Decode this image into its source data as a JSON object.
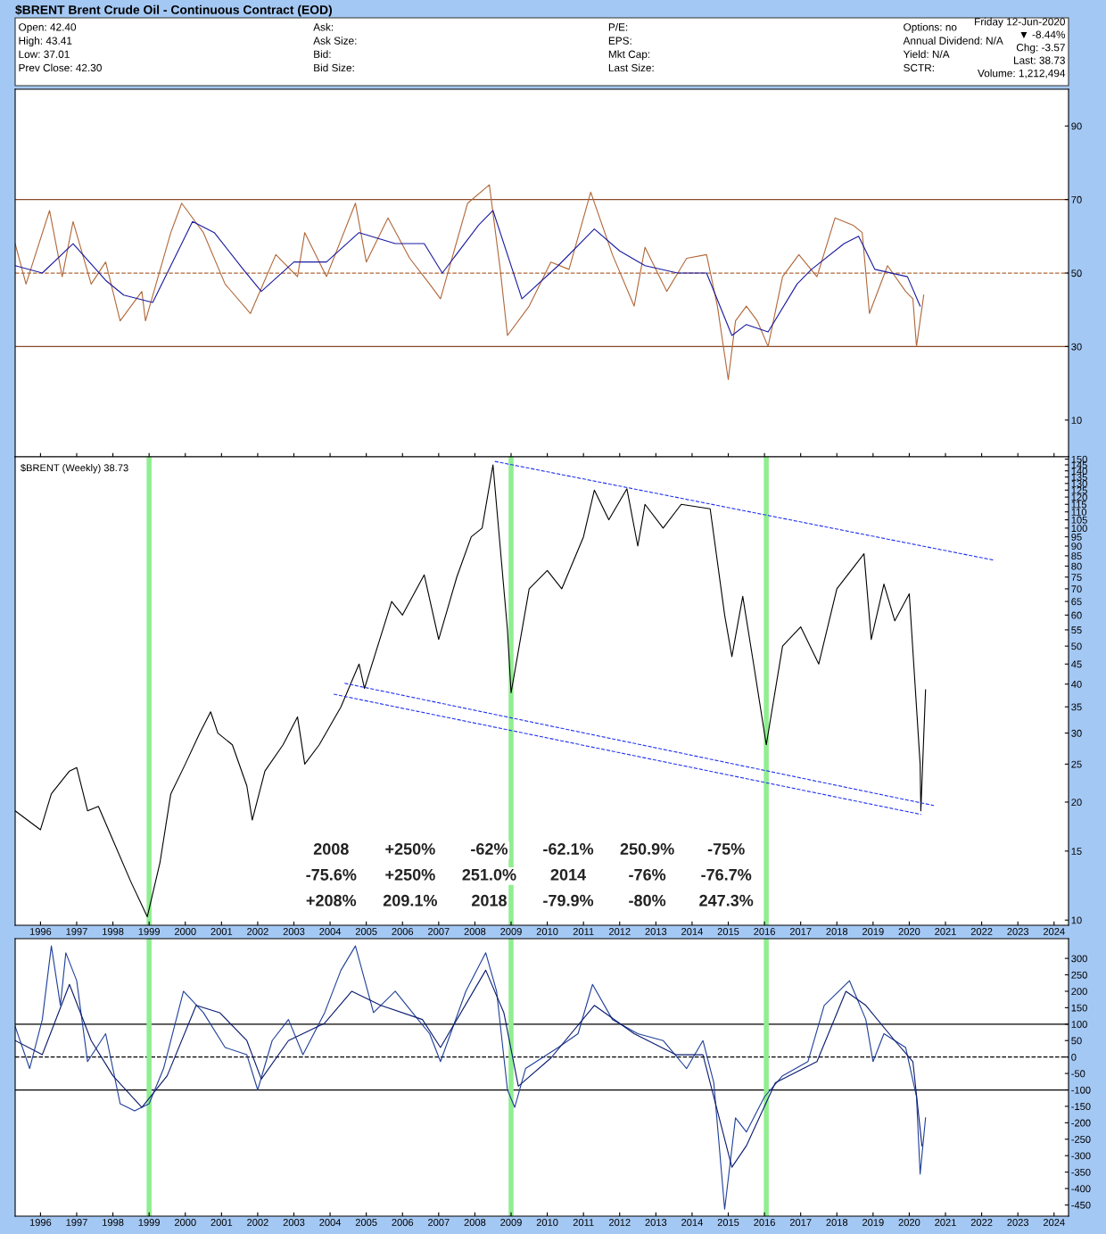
{
  "chart_data": [
    {
      "type": "line",
      "title": "$BRENT Brent Crude Oil - Continuous Contract (EOD)",
      "annotations": [
        "Open: 42.40",
        "High: 43.41",
        "Low: 37.01",
        "Prev Close: 42.30",
        "Ask:",
        "Ask Size:",
        "Bid:",
        "Bid Size:",
        "P/E:",
        "EPS:",
        "Mkt Cap:",
        "Last Size:",
        "Options: no",
        "Annual Dividend: N/A",
        "Yield: N/A",
        "SCTR:",
        "Friday 12-Jun-2020",
        "▼ -8.44%",
        "Chg: -3.57",
        "Last: 38.73",
        "Volume: 1,212,494"
      ],
      "series": [
        {
          "color": "#b0683a",
          "x": [
            1995.3,
            1995.6,
            1996.25,
            1996.6,
            1996.9,
            1997.4,
            1997.8,
            1998.2,
            1998.8,
            1998.9,
            1999.6,
            1999.9,
            2000.5,
            2001.1,
            2001.8,
            2002.5,
            2003.1,
            2003.3,
            2003.9,
            2004.7,
            2005.0,
            2005.6,
            2006.2,
            2006.75,
            2007.05,
            2007.8,
            2008.4,
            2008.7,
            2008.9,
            2009.5,
            2010.1,
            2010.6,
            2011.2,
            2011.8,
            2012.4,
            2012.7,
            2013.3,
            2013.85,
            2014.4,
            2014.7,
            2015.0,
            2015.2,
            2015.5,
            2015.8,
            2016.1,
            2016.5,
            2016.95,
            2017.45,
            2017.95,
            2018.45,
            2018.7,
            2018.9,
            2019.4,
            2019.9,
            2020.1,
            2020.2,
            2020.4
          ],
          "values": [
            58,
            47,
            67,
            49,
            64,
            47,
            53,
            37,
            45,
            37,
            61,
            69,
            61,
            47,
            39,
            55,
            49,
            61,
            49,
            69,
            53,
            65,
            54,
            47,
            43,
            69,
            74,
            51,
            33,
            41,
            53,
            51,
            72,
            55,
            41,
            57,
            45,
            54,
            55,
            41,
            21,
            37,
            41,
            37,
            30,
            49,
            55,
            49,
            65,
            63,
            61,
            39,
            52,
            45,
            43,
            30,
            44
          ]
        },
        {
          "color": "#1a1aa0",
          "x": [
            1995.3,
            1996.05,
            1996.9,
            1997.8,
            1998.3,
            1999.1,
            2000.2,
            2000.8,
            2001.6,
            2002.1,
            2003.0,
            2003.9,
            2004.8,
            2005.8,
            2006.6,
            2007.1,
            2008.1,
            2008.5,
            2009.3,
            2010.3,
            2011.3,
            2012.0,
            2012.7,
            2013.6,
            2014.4,
            2015.1,
            2015.5,
            2016.1,
            2016.9,
            2017.3,
            2018.2,
            2018.6,
            2019.05,
            2019.95,
            2020.3
          ],
          "values": [
            52,
            50,
            58,
            48,
            44,
            42,
            64,
            61,
            51,
            45,
            53,
            53,
            61,
            58,
            58,
            50,
            63,
            67,
            43,
            52,
            62,
            56,
            52,
            50,
            50,
            33,
            36,
            34,
            47,
            51,
            58,
            60,
            51,
            49,
            41
          ]
        }
      ],
      "xlim": [
        1995.3,
        2024.4
      ],
      "xticks": [
        1996,
        1997,
        1998,
        1999,
        2000,
        2001,
        2002,
        2003,
        2004,
        2005,
        2006,
        2007,
        2008,
        2009,
        2010,
        2011,
        2012,
        2013,
        2014,
        2015,
        2016,
        2017,
        2018,
        2019,
        2020,
        2021,
        2022,
        2023,
        2024
      ],
      "ylim": [
        0,
        100
      ],
      "yticks": [
        10,
        30,
        50,
        70,
        90
      ],
      "tick_labels": "y",
      "line_style": "solid",
      "ref_lines": [
        {
          "axis": "y",
          "value": 70,
          "color": "#8b4a2b",
          "line_style": "solid"
        },
        {
          "axis": "y",
          "value": 30,
          "color": "#8b4a2b",
          "line_style": "solid"
        },
        {
          "axis": "y",
          "value": 50,
          "color": "#b0683a",
          "line_style": "dashed"
        }
      ]
    },
    {
      "type": "line",
      "log": true,
      "annotations": [
        "$BRENT (Weekly) 38.73",
        "2008",
        "+250%",
        "-62%",
        "-62.1%",
        "250.9%",
        "-75%",
        "-75.6%",
        "+250%",
        "251.0%",
        "2014",
        "-76%",
        "-76.7%",
        "+208%",
        "209.1%",
        "2018",
        "-79.9%",
        "-80%",
        "247.3%"
      ],
      "series": [
        {
          "color": "#000000",
          "x": [
            1995.3,
            1996.0,
            1996.3,
            1996.8,
            1997.0,
            1997.3,
            1997.6,
            1998.0,
            1998.5,
            1998.95,
            1999.3,
            1999.6,
            2000.0,
            2000.4,
            2000.7,
            2000.9,
            2001.3,
            2001.7,
            2001.85,
            2002.2,
            2002.7,
            2003.1,
            2003.3,
            2003.7,
            2004.3,
            2004.8,
            2004.95,
            2005.7,
            2006.0,
            2006.6,
            2007.0,
            2007.5,
            2007.9,
            2008.2,
            2008.5,
            2008.9,
            2009.0,
            2009.5,
            2010.0,
            2010.4,
            2011.0,
            2011.3,
            2011.7,
            2012.2,
            2012.5,
            2012.7,
            2013.2,
            2013.7,
            2014.5,
            2014.9,
            2015.1,
            2015.4,
            2015.7,
            2016.05,
            2016.5,
            2017.0,
            2017.5,
            2018.0,
            2018.75,
            2018.95,
            2019.3,
            2019.6,
            2020.0,
            2020.3,
            2020.32,
            2020.45
          ],
          "values": [
            19,
            17,
            21,
            24,
            24.5,
            19,
            19.5,
            16,
            12.5,
            10.2,
            14,
            21,
            25,
            30,
            34,
            30,
            28,
            22,
            18,
            24,
            28,
            33,
            25,
            28,
            35,
            45,
            39,
            65,
            60,
            76,
            52,
            75,
            95,
            100,
            145,
            55,
            38,
            70,
            78,
            70,
            95,
            125,
            105,
            126,
            90,
            115,
            100,
            115,
            112,
            60,
            47,
            67,
            45,
            28,
            50,
            56,
            45,
            70,
            86,
            52,
            72,
            58,
            68,
            25,
            19,
            38.7
          ]
        },
        {
          "color": "#2233ee",
          "line_style": "dashed",
          "x": [
            2008.55,
            2022.35
          ],
          "values": [
            148,
            82.8
          ]
        },
        {
          "color": "#2233ee",
          "line_style": "dashed",
          "x": [
            2004.4,
            2020.68
          ],
          "values": [
            40.2,
            19.6
          ]
        },
        {
          "color": "#2233ee",
          "line_style": "dashed",
          "x": [
            2004.1,
            2020.33
          ],
          "values": [
            37.7,
            18.6
          ]
        }
      ],
      "xlim": [
        1995.3,
        2024.4
      ],
      "xticks": [
        1996,
        1997,
        1998,
        1999,
        2000,
        2001,
        2002,
        2003,
        2004,
        2005,
        2006,
        2007,
        2008,
        2009,
        2010,
        2011,
        2012,
        2013,
        2014,
        2015,
        2016,
        2017,
        2018,
        2019,
        2020,
        2021,
        2022,
        2023,
        2024
      ],
      "ylim": [
        9.7,
        152
      ],
      "yticks": [
        10,
        15,
        20,
        25,
        30,
        35,
        40,
        45,
        50,
        55,
        60,
        65,
        70,
        75,
        80,
        85,
        90,
        95,
        100,
        105,
        110,
        115,
        120,
        125,
        130,
        135,
        140,
        145,
        150
      ],
      "line_style": "solid",
      "ref_lines": [
        {
          "axis": "x",
          "value": 1999.0,
          "color": "#90ee90"
        },
        {
          "axis": "x",
          "value": 2009.0,
          "color": "#90ee90"
        },
        {
          "axis": "x",
          "value": 2016.05,
          "color": "#90ee90"
        }
      ]
    },
    {
      "type": "line",
      "series": [
        {
          "color": "#1f3f99",
          "x": [
            1995.3,
            1995.7,
            1996.05,
            1996.3,
            1996.55,
            1996.7,
            1997.0,
            1997.3,
            1997.8,
            1998.2,
            1998.6,
            1999.0,
            1999.4,
            1999.95,
            2000.5,
            2001.1,
            2001.7,
            2002.0,
            2002.4,
            2002.85,
            2003.25,
            2003.85,
            2004.3,
            2004.7,
            2005.2,
            2005.8,
            2006.35,
            2006.75,
            2007.05,
            2007.75,
            2008.3,
            2008.6,
            2008.9,
            2009.1,
            2009.4,
            2010.3,
            2010.85,
            2011.25,
            2011.8,
            2012.5,
            2013.2,
            2013.85,
            2014.3,
            2014.6,
            2014.9,
            2015.2,
            2015.5,
            2016.0,
            2016.5,
            2017.2,
            2017.65,
            2018.35,
            2018.8,
            2019.0,
            2019.3,
            2019.9,
            2020.2,
            2020.3,
            2020.45
          ],
          "values": [
            93,
            -35,
            114,
            338,
            157,
            317,
            232,
            -14,
            71,
            -142,
            -164,
            -142,
            -35,
            200,
            135,
            29,
            7,
            -100,
            50,
            114,
            7,
            135,
            264,
            338,
            135,
            200,
            125,
            71,
            -14,
            200,
            317,
            200,
            -100,
            -153,
            -35,
            29,
            71,
            221,
            114,
            71,
            50,
            -35,
            50,
            -78,
            -463,
            -185,
            -228,
            -121,
            -57,
            -14,
            157,
            232,
            114,
            -14,
            71,
            29,
            -121,
            -356,
            -185
          ]
        },
        {
          "color": "#0a1a6e",
          "x": [
            1995.3,
            1996.05,
            1996.8,
            1997.4,
            1998.0,
            1998.8,
            1999.5,
            2000.3,
            2000.95,
            2001.7,
            2002.1,
            2002.85,
            2003.85,
            2004.6,
            2005.4,
            2006.55,
            2007.05,
            2008.3,
            2008.8,
            2009.2,
            2010.1,
            2011.3,
            2012.4,
            2013.55,
            2014.3,
            2015.1,
            2015.5,
            2016.3,
            2017.45,
            2018.25,
            2018.8,
            2019.6,
            2020.1,
            2020.35
          ],
          "values": [
            50,
            7,
            221,
            50,
            -57,
            -153,
            -57,
            157,
            135,
            50,
            -67,
            50,
            103,
            200,
            157,
            114,
            29,
            264,
            135,
            -89,
            -3,
            157,
            71,
            7,
            7,
            -335,
            -270,
            -78,
            -14,
            200,
            157,
            50,
            -14,
            -270
          ]
        }
      ],
      "xlim": [
        1995.3,
        2024.4
      ],
      "xticks": [
        1996,
        1997,
        1998,
        1999,
        2000,
        2001,
        2002,
        2003,
        2004,
        2005,
        2006,
        2007,
        2008,
        2009,
        2010,
        2011,
        2012,
        2013,
        2014,
        2015,
        2016,
        2017,
        2018,
        2019,
        2020,
        2021,
        2022,
        2023,
        2024
      ],
      "ylim": [
        -484,
        360
      ],
      "yticks": [
        -450,
        -400,
        -350,
        -300,
        -250,
        -200,
        -150,
        -100,
        -50,
        0,
        50,
        100,
        150,
        200,
        250,
        300
      ],
      "line_style": "solid",
      "ref_lines": [
        {
          "axis": "y",
          "value": 100,
          "color": "#000000",
          "line_style": "solid"
        },
        {
          "axis": "y",
          "value": -100,
          "color": "#000000",
          "line_style": "solid"
        },
        {
          "axis": "y",
          "value": 0,
          "color": "#000000",
          "line_style": "dashed"
        },
        {
          "axis": "x",
          "value": 1999.0,
          "color": "#90ee90"
        },
        {
          "axis": "x",
          "value": 2009.0,
          "color": "#90ee90"
        },
        {
          "axis": "x",
          "value": 2016.05,
          "color": "#90ee90"
        }
      ]
    }
  ]
}
